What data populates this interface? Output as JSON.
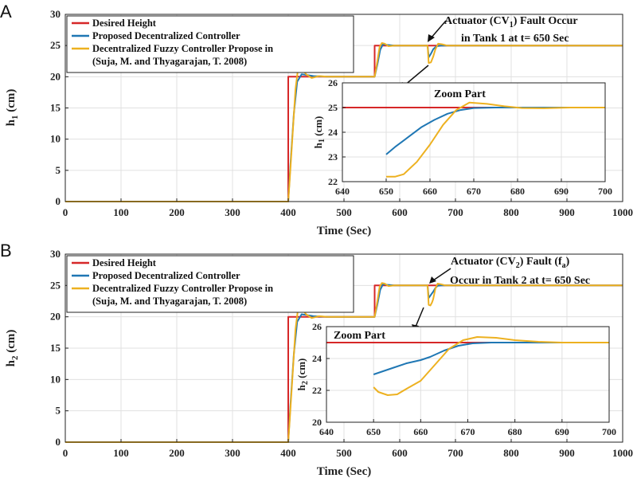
{
  "colors": {
    "desired": "#d62728",
    "proposed": "#1f77b4",
    "fuzzy": "#edb120",
    "grid": "#e0e0e0",
    "axis": "#222222"
  },
  "chart_data": [
    {
      "panel_label": "A",
      "type": "line",
      "xlabel": "Time (Sec)",
      "ylabel_main": "h",
      "ylabel_sub": "1",
      "ylabel_unit": " (cm)",
      "xlim": [
        0,
        1000
      ],
      "ylim": [
        0,
        30
      ],
      "xticks": [
        0,
        100,
        200,
        300,
        400,
        500,
        600,
        700,
        800,
        900,
        1000
      ],
      "yticks": [
        0,
        5,
        10,
        15,
        20,
        25,
        30
      ],
      "grid": true,
      "legend": {
        "position": "top-left",
        "entries": [
          "Desired Height",
          "Proposed Decentralized Controller",
          "Decentralized Fuzzy Controller Propose in",
          "(Suja, M. and Thyagarajan, T. 2008)"
        ]
      },
      "annotation": {
        "line1_a": "Actuator (CV",
        "line1_sub": "1",
        "line1_b": ") Fault Occur",
        "line2": "in Tank 1 at t= 650 Sec"
      },
      "series": [
        {
          "name": "Desired Height",
          "x": [
            0,
            400,
            400,
            555,
            555,
            1000
          ],
          "y": [
            0,
            0,
            20,
            20,
            25,
            25
          ]
        },
        {
          "name": "Proposed Decentralized Controller",
          "x": [
            0,
            400,
            404,
            410,
            416,
            424,
            432,
            445,
            470,
            555,
            560,
            565,
            570,
            578,
            590,
            650,
            652,
            656,
            660,
            666,
            675,
            1000
          ],
          "y": [
            0,
            0,
            6,
            14,
            19.2,
            20.4,
            20.3,
            20.1,
            20,
            20,
            22,
            24.3,
            25.2,
            25.1,
            25,
            25,
            23.1,
            23.7,
            24.4,
            24.9,
            25,
            25
          ]
        },
        {
          "name": "Decentralized Fuzzy Controller Propose in (Suja, M. and Thyagarajan, T. 2008)",
          "x": [
            0,
            400,
            403,
            408,
            413,
            418,
            424,
            432,
            442,
            455,
            470,
            555,
            559,
            564,
            568,
            573,
            580,
            590,
            600,
            650,
            652,
            656,
            660,
            664,
            669,
            676,
            685,
            1000
          ],
          "y": [
            0,
            0,
            4,
            11,
            18,
            21.6,
            21.4,
            20.4,
            19.8,
            20.1,
            20,
            20,
            22,
            24.8,
            25.4,
            25.3,
            24.9,
            25,
            25,
            25,
            22.2,
            22.3,
            23.2,
            24.4,
            25.3,
            25.2,
            25,
            25
          ]
        }
      ],
      "inset": {
        "title": "Zoom Part",
        "xlim": [
          640,
          700
        ],
        "ylim": [
          22,
          26
        ],
        "xticks": [
          640,
          650,
          660,
          670,
          680,
          690,
          700
        ],
        "yticks": [
          22,
          23,
          24,
          25,
          26
        ],
        "ylabel_main": "h",
        "ylabel_sub": "1",
        "ylabel_unit": " (cm)",
        "series": [
          {
            "name": "Desired Height",
            "x": [
              640,
              650,
              650,
              700
            ],
            "y": [
              25,
              25,
              25,
              25
            ]
          },
          {
            "name": "Proposed Decentralized Controller",
            "x": [
              650,
              652,
              655,
              658,
              661,
              664,
              667,
              670,
              675,
              680,
              690,
              700
            ],
            "y": [
              23.1,
              23.4,
              23.8,
              24.2,
              24.5,
              24.75,
              24.9,
              24.98,
              25,
              25,
              25,
              25
            ]
          },
          {
            "name": "Decentralized Fuzzy Controller",
            "x": [
              650,
              652,
              654,
              657,
              660,
              663,
              666,
              669,
              673,
              677,
              681,
              686,
              692,
              700
            ],
            "y": [
              22.2,
              22.2,
              22.3,
              22.8,
              23.5,
              24.3,
              24.9,
              25.2,
              25.15,
              25.05,
              24.98,
              24.97,
              25,
              25
            ]
          }
        ]
      }
    },
    {
      "panel_label": "B",
      "type": "line",
      "xlabel": "Time (Sec)",
      "ylabel_main": "h",
      "ylabel_sub": "2",
      "ylabel_unit": " (cm)",
      "xlim": [
        0,
        1000
      ],
      "ylim": [
        0,
        30
      ],
      "xticks": [
        0,
        100,
        200,
        300,
        400,
        500,
        600,
        700,
        800,
        900,
        1000
      ],
      "yticks": [
        0,
        5,
        10,
        15,
        20,
        25,
        30
      ],
      "grid": true,
      "legend": {
        "position": "top-left",
        "entries": [
          "Desired Height",
          "Proposed Decentralized Controller",
          "Decentralized Fuzzy Controller Propose in",
          "(Suja, M. and Thyagarajan, T. 2008)"
        ]
      },
      "annotation": {
        "line1_a": "Actuator (CV",
        "line1_sub": "2",
        "line1_b": ") Fault (f",
        "line1_sub2": "a",
        "line1_c": ")",
        "line2": "Occur in Tank 2 at t= 650 Sec"
      },
      "series": [
        {
          "name": "Desired Height",
          "x": [
            0,
            400,
            400,
            555,
            555,
            1000
          ],
          "y": [
            0,
            0,
            20,
            20,
            25,
            25
          ]
        },
        {
          "name": "Proposed Decentralized Controller",
          "x": [
            0,
            400,
            404,
            410,
            416,
            424,
            432,
            445,
            470,
            555,
            560,
            565,
            570,
            578,
            590,
            650,
            652,
            656,
            660,
            664,
            668,
            675,
            1000
          ],
          "y": [
            0,
            0,
            6,
            14,
            19.2,
            20.4,
            20.3,
            20.1,
            20,
            20,
            22,
            24.3,
            25.2,
            25.1,
            25,
            25,
            23,
            23.5,
            24,
            24.6,
            24.95,
            25,
            25
          ]
        },
        {
          "name": "Decentralized Fuzzy Controller Propose in (Suja, M. and Thyagarajan, T. 2008)",
          "x": [
            0,
            400,
            403,
            408,
            413,
            418,
            424,
            432,
            442,
            455,
            470,
            555,
            559,
            564,
            568,
            573,
            580,
            590,
            600,
            650,
            652,
            655,
            658,
            660,
            664,
            668,
            674,
            682,
            1000
          ],
          "y": [
            0,
            0,
            4,
            11,
            18,
            21.6,
            21.4,
            20.4,
            19.8,
            20.1,
            20,
            20,
            22,
            24.8,
            25.4,
            25.3,
            24.9,
            25,
            25,
            25,
            21.9,
            21.8,
            22.3,
            22.8,
            24.5,
            25.3,
            25.2,
            25,
            25
          ]
        }
      ],
      "inset": {
        "title": "Zoom Part",
        "xlim": [
          640,
          700
        ],
        "ylim": [
          20,
          26
        ],
        "xticks": [
          640,
          650,
          660,
          670,
          680,
          690,
          700
        ],
        "yticks": [
          20,
          22,
          24,
          26
        ],
        "ylabel_main": "h",
        "ylabel_sub": "2",
        "ylabel_unit": " (cm)",
        "series": [
          {
            "name": "Desired Height",
            "x": [
              640,
              650,
              650,
              700
            ],
            "y": [
              25,
              25,
              25,
              25
            ]
          },
          {
            "name": "Proposed Decentralized Controller",
            "x": [
              650,
              651,
              654,
              657,
              660,
              662,
              665,
              668,
              671,
              675,
              680,
              690,
              700
            ],
            "y": [
              23,
              23.1,
              23.4,
              23.7,
              23.9,
              24.1,
              24.5,
              24.8,
              24.95,
              25,
              25,
              25,
              25
            ]
          },
          {
            "name": "Decentralized Fuzzy Controller",
            "x": [
              650,
              651,
              653,
              655,
              657,
              660,
              663,
              666,
              669,
              672,
              676,
              680,
              685,
              690,
              700
            ],
            "y": [
              22.2,
              21.9,
              21.7,
              21.75,
              22.1,
              22.6,
              23.6,
              24.6,
              25.15,
              25.35,
              25.3,
              25.15,
              25.05,
              25,
              25
            ]
          }
        ]
      }
    }
  ]
}
